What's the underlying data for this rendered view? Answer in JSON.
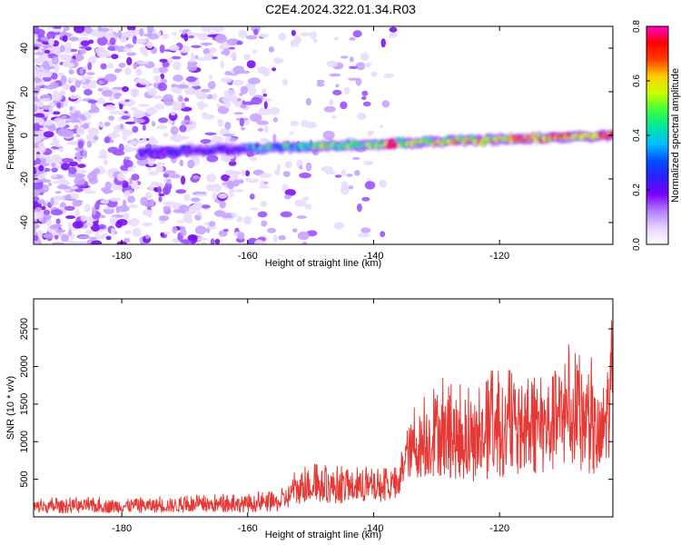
{
  "title": "C2E4.2024.322.01.34.R03",
  "colors": {
    "snr_line": "#e53935",
    "colormap": [
      "#ffffff",
      "#e6d2ff",
      "#b37cff",
      "#7a00ff",
      "#2a1fff",
      "#0050ff",
      "#00bfff",
      "#00e5a0",
      "#3cff3c",
      "#c8ff00",
      "#ffd000",
      "#ff4000",
      "#ff0000",
      "#ff00c8"
    ]
  },
  "chart_data": [
    {
      "type": "heatmap",
      "xlabel": "Height of straight line (km)",
      "ylabel": "Frequency (Hz)",
      "xlim": [
        -194,
        -102
      ],
      "ylim": [
        -50,
        50
      ],
      "xticks": [
        -180,
        -160,
        -140,
        -120
      ],
      "yticks": [
        -40,
        -20,
        0,
        20,
        40
      ],
      "colorbar": {
        "label": "Normalized spectral amplitude",
        "range": [
          0.0,
          0.8
        ],
        "ticks": [
          "0.0",
          "0.2",
          "0.4",
          "0.6",
          "0.8"
        ]
      },
      "signal_band": {
        "center_freq_start": -8,
        "center_freq_end": 0,
        "x_start": -177,
        "x_end": -102,
        "peak_amplitude": 0.8,
        "peak_x": -137
      }
    },
    {
      "type": "line",
      "xlabel": "Height of straight line (km)",
      "ylabel": "SNR (10 * v/v)",
      "xlim": [
        -194,
        -102
      ],
      "ylim": [
        0,
        2900
      ],
      "xticks": [
        -180,
        -160,
        -140,
        -120
      ],
      "yticks": [
        500,
        1000,
        1500,
        2000,
        2500
      ],
      "series": [
        {
          "envelope": [
            {
              "x": -194,
              "min": 0,
              "max": 250
            },
            {
              "x": -165,
              "min": 0,
              "max": 300
            },
            {
              "x": -155,
              "min": 0,
              "max": 350
            },
            {
              "x": -151,
              "min": 50,
              "max": 750
            },
            {
              "x": -145,
              "min": 50,
              "max": 700
            },
            {
              "x": -136,
              "min": 100,
              "max": 650
            },
            {
              "x": -135,
              "min": 300,
              "max": 1300
            },
            {
              "x": -130,
              "min": 200,
              "max": 1900
            },
            {
              "x": -124,
              "min": 150,
              "max": 1700
            },
            {
              "x": -121,
              "min": 150,
              "max": 2050
            },
            {
              "x": -115,
              "min": 200,
              "max": 1900
            },
            {
              "x": -110,
              "min": 150,
              "max": 2350
            },
            {
              "x": -106,
              "min": 150,
              "max": 2250
            },
            {
              "x": -104,
              "min": 50,
              "max": 1800
            },
            {
              "x": -102,
              "min": 500,
              "max": 2850
            }
          ]
        }
      ]
    }
  ]
}
